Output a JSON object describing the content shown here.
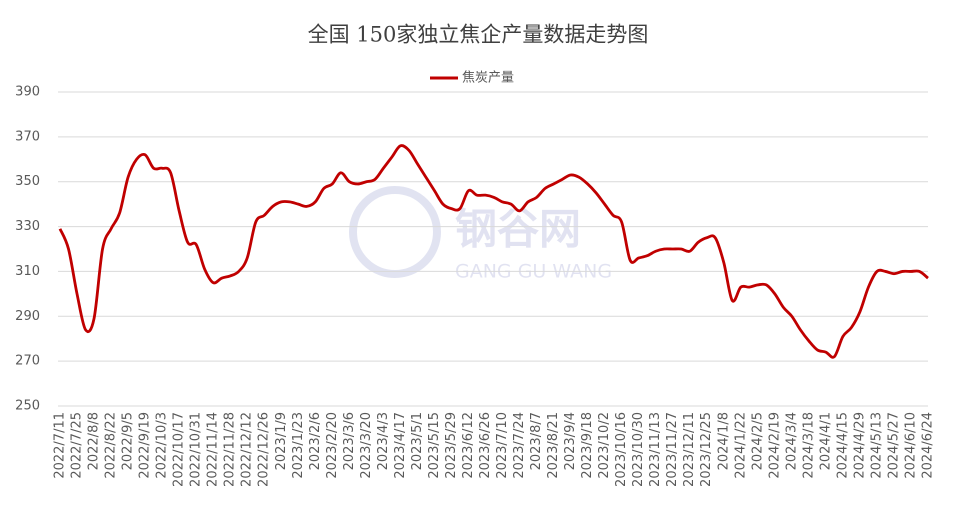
{
  "chart_data": {
    "type": "line",
    "title": "全国 150家独立焦企产量数据走势图",
    "watermark": {
      "brand": "钢谷网",
      "latin": "GANG GU WANG"
    },
    "categories": [
      "2022/7/11",
      null,
      "2022/7/25",
      null,
      "2022/8/8",
      null,
      "2022/8/22",
      null,
      "2022/9/5",
      null,
      "2022/9/19",
      null,
      "2022/10/3",
      null,
      "2022/10/17",
      null,
      "2022/10/31",
      null,
      "2022/11/14",
      null,
      "2022/11/28",
      null,
      "2022/12/12",
      null,
      "2022/12/26",
      null,
      "2023/1/9",
      null,
      "2023/1/23",
      null,
      "2023/2/6",
      null,
      "2023/2/20",
      null,
      "2023/3/6",
      null,
      "2023/3/20",
      null,
      "2023/4/3",
      null,
      "2023/4/17",
      null,
      "2023/5/1",
      null,
      "2023/5/15",
      null,
      "2023/5/29",
      null,
      "2023/6/12",
      null,
      "2023/6/26",
      null,
      "2023/7/10",
      null,
      "2023/7/24",
      null,
      "2023/8/7",
      null,
      "2023/8/21",
      null,
      "2023/9/4",
      null,
      "2023/9/18",
      null,
      "2023/10/2",
      null,
      "2023/10/16",
      null,
      "2023/10/30",
      null,
      "2023/11/13",
      null,
      "2023/11/27",
      null,
      "2023/12/11",
      null,
      "2023/12/25",
      null,
      "2024/1/8",
      null,
      "2024/1/22",
      null,
      "2024/2/5",
      null,
      "2024/2/19",
      null,
      "2024/3/4",
      null,
      "2024/3/18",
      null,
      "2024/4/1",
      null,
      "2024/4/15",
      null,
      "2024/4/29",
      null,
      "2024/5/13",
      null,
      "2024/5/27",
      null,
      "2024/6/10",
      null,
      "2024/6/24"
    ],
    "series": [
      {
        "name": "焦炭产量",
        "color": "#c00000",
        "values": [
          329,
          320,
          300,
          284,
          289,
          320,
          329,
          336,
          352,
          360,
          362,
          356,
          356,
          354,
          337,
          323,
          322,
          311,
          305,
          307,
          308,
          310,
          316,
          332,
          335,
          339,
          341,
          341,
          340,
          339,
          341,
          347,
          349,
          354,
          350,
          349,
          350,
          351,
          356,
          361,
          366,
          364,
          358,
          352,
          346,
          340,
          338,
          338,
          346,
          344,
          344,
          343,
          341,
          340,
          337,
          341,
          343,
          347,
          349,
          351,
          353,
          352,
          349,
          345,
          340,
          335,
          332,
          315,
          316,
          317,
          319,
          320,
          320,
          320,
          319,
          323,
          325,
          325,
          314,
          297,
          303,
          303,
          304,
          304,
          300,
          294,
          290,
          284,
          279,
          275,
          274,
          272,
          281,
          285,
          292,
          303,
          310,
          310,
          309,
          310,
          310,
          310,
          307
        ]
      }
    ],
    "ylim": [
      250,
      390
    ],
    "yticks": [
      250,
      270,
      290,
      310,
      330,
      350,
      370,
      390
    ],
    "grid": true,
    "legend": "top"
  }
}
